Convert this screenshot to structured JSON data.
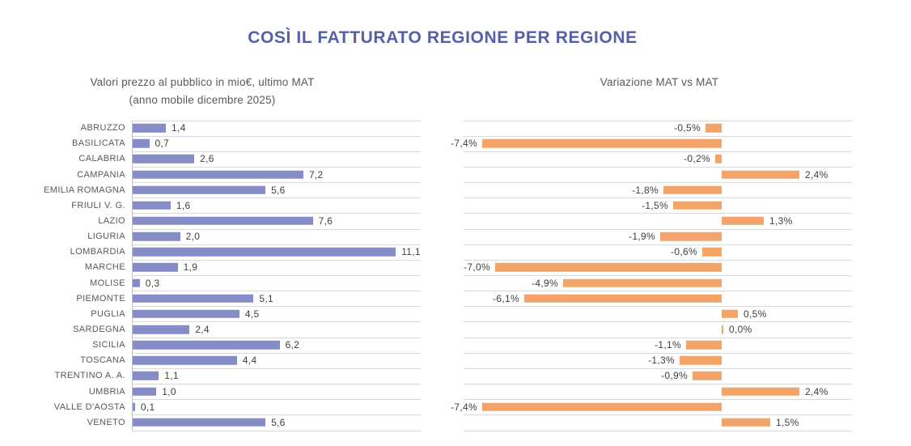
{
  "title": "COSÌ IL FATTURATO REGIONE PER REGIONE",
  "left_chart": {
    "subtitle_line1": "Valori prezzo al pubblico in mio€, ultimo MAT",
    "subtitle_line2": "(anno mobile dicembre 2025)"
  },
  "right_chart": {
    "subtitle": "Variazione MAT vs MAT"
  },
  "colors": {
    "title": "#5560aa",
    "bar_values": "#868cc6",
    "bar_variation": "#f2a469",
    "grid": "#d9d9d9",
    "category_text": "#595959",
    "value_text": "#3f3f3f"
  },
  "chart_data": [
    {
      "type": "bar",
      "orientation": "horizontal",
      "title": "Valori prezzo al pubblico in mio€, ultimo MAT (anno mobile dicembre 2025)",
      "unit": "mio€",
      "xlim": [
        0,
        12.2
      ],
      "grid": "row-separators",
      "categories": [
        "ABRUZZO",
        "BASILICATA",
        "CALABRIA",
        "CAMPANIA",
        "EMILIA ROMAGNA",
        "FRIULI V. G.",
        "LAZIO",
        "LIGURIA",
        "LOMBARDIA",
        "MARCHE",
        "MOLISE",
        "PIEMONTE",
        "PUGLIA",
        "SARDEGNA",
        "SICILIA",
        "TOSCANA",
        "TRENTINO A. A.",
        "UMBRIA",
        "VALLE D'AOSTA",
        "VENETO"
      ],
      "values": [
        1.4,
        0.7,
        2.6,
        7.2,
        5.6,
        1.6,
        7.6,
        2.0,
        11.1,
        1.9,
        0.3,
        5.1,
        4.5,
        2.4,
        6.2,
        4.4,
        1.1,
        1.0,
        0.1,
        5.6
      ],
      "labels": [
        "1,4",
        "0,7",
        "2,6",
        "7,2",
        "5,6",
        "1,6",
        "7,6",
        "2,0",
        "11,1",
        "1,9",
        "0,3",
        "5,1",
        "4,5",
        "2,4",
        "6,2",
        "4,4",
        "1,1",
        "1,0",
        "0,1",
        "5,6"
      ]
    },
    {
      "type": "bar",
      "orientation": "horizontal",
      "title": "Variazione MAT vs MAT",
      "unit": "%",
      "xlim": [
        -8,
        4
      ],
      "grid": "row-separators",
      "categories": [
        "ABRUZZO",
        "BASILICATA",
        "CALABRIA",
        "CAMPANIA",
        "EMILIA ROMAGNA",
        "FRIULI V. G.",
        "LAZIO",
        "LIGURIA",
        "LOMBARDIA",
        "MARCHE",
        "MOLISE",
        "PIEMONTE",
        "PUGLIA",
        "SARDEGNA",
        "SICILIA",
        "TOSCANA",
        "TRENTINO A. A.",
        "UMBRIA",
        "VALLE D'AOSTA",
        "VENETO"
      ],
      "values": [
        -0.5,
        -7.4,
        -0.2,
        2.4,
        -1.8,
        -1.5,
        1.3,
        -1.9,
        -0.6,
        -7.0,
        -4.9,
        -6.1,
        0.5,
        0.0,
        -1.1,
        -1.3,
        -0.9,
        2.4,
        -7.4,
        1.5
      ],
      "labels": [
        "-0,5%",
        "-7,4%",
        "-0,2%",
        "2,4%",
        "-1,8%",
        "-1,5%",
        "1,3%",
        "-1,9%",
        "-0,6%",
        "-7,0%",
        "-4,9%",
        "-6,1%",
        "0,5%",
        "0,0%",
        "-1,1%",
        "-1,3%",
        "-0,9%",
        "2,4%",
        "-7,4%",
        "1,5%"
      ]
    }
  ]
}
